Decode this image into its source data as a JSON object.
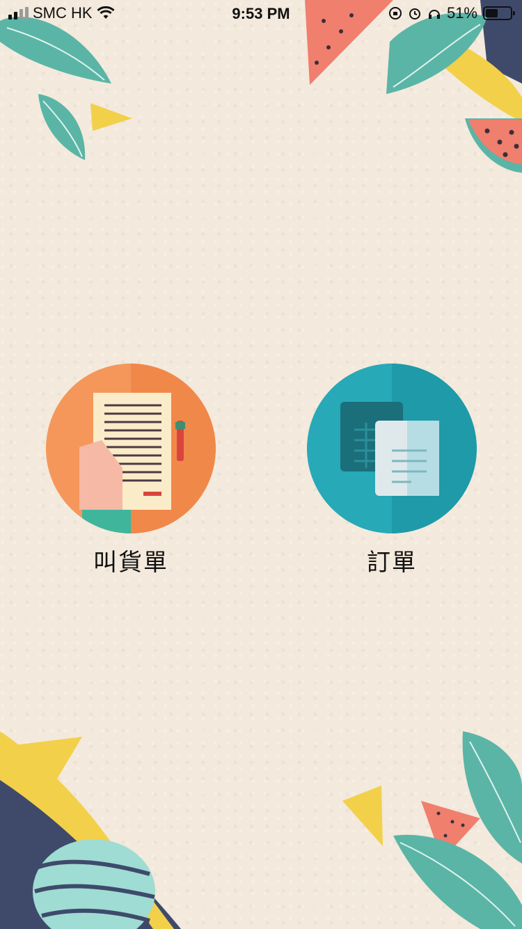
{
  "status_bar": {
    "carrier": "SMC HK",
    "time": "9:53 PM",
    "battery_percent": "51%",
    "battery_level": 0.51,
    "signal_bars": 2
  },
  "menu": [
    {
      "label": "叫貨單",
      "icon": "clipboard-order-icon",
      "color": "#f5975a"
    },
    {
      "label": "訂單",
      "icon": "spreadsheet-documents-icon",
      "color": "#27a9b7"
    }
  ]
}
